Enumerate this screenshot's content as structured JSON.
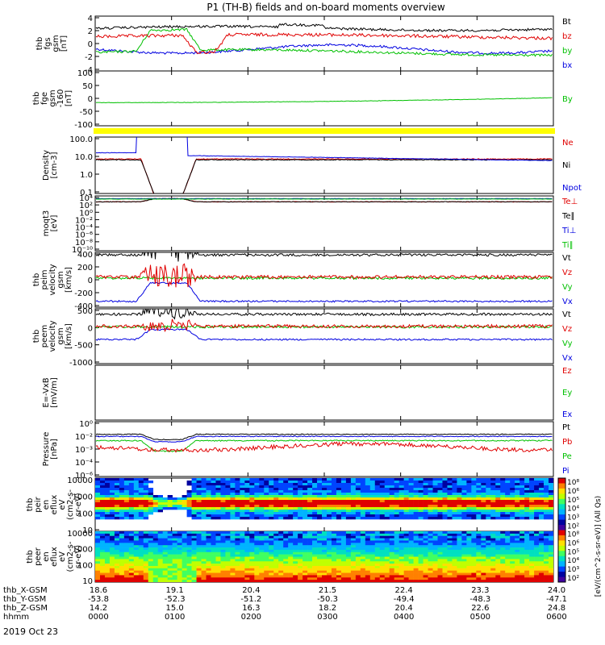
{
  "title": "P1 (TH-B) fields and on-board moments overview",
  "date_label": "2019 Oct 23",
  "colors": {
    "black": "#000000",
    "red": "#e00000",
    "green": "#00c000",
    "blue": "#0000e0",
    "yellow": "#ffff00"
  },
  "chart_data": [
    {
      "type": "line",
      "ylabel": [
        "thb",
        "fgs",
        "gsm",
        "[nT]"
      ],
      "yticks": [
        "4",
        "2",
        "0",
        "-2",
        "-4"
      ],
      "ylim": [
        -4,
        4
      ],
      "series": [
        {
          "name": "Bt",
          "color": "black",
          "level": 2.2,
          "noise": 0.3
        },
        {
          "name": "bz",
          "color": "red",
          "level": 1.0,
          "noise": 0.4
        },
        {
          "name": "by",
          "color": "green",
          "level": -1.2,
          "noise": 0.3
        },
        {
          "name": "bx",
          "color": "blue",
          "level": -0.8,
          "noise": 0.4
        }
      ]
    },
    {
      "type": "line",
      "ylabel": [
        "thb",
        "fge",
        "gsm",
        "-160",
        "[nT]"
      ],
      "yticks": [
        "100",
        "50",
        "0",
        "-50",
        "-100"
      ],
      "ylim": [
        -125,
        100
      ],
      "series": [
        {
          "name": "By",
          "color": "green",
          "level": -30,
          "noise": 0.5
        }
      ]
    },
    {
      "type": "bar",
      "note": "yellow flag bar",
      "color": "yellow"
    },
    {
      "type": "line",
      "log": true,
      "ylabel": [
        "Density",
        "[cm-3]"
      ],
      "yticks": [
        "100.0",
        "10.0",
        "1.0",
        "0.1"
      ],
      "series": [
        {
          "name": "Ne",
          "color": "red"
        },
        {
          "name": "Ni",
          "color": "black"
        },
        {
          "name": "Npot",
          "color": "blue"
        }
      ]
    },
    {
      "type": "line",
      "log": true,
      "ylabel": [
        "moqt3",
        "[eV]"
      ],
      "yticks": [
        "10⁴",
        "10²",
        "10⁰",
        "10⁻²",
        "10⁻⁴",
        "10⁻⁶",
        "10⁻⁸",
        "10⁻¹⁰"
      ],
      "series": [
        {
          "name": "Te⊥",
          "color": "red"
        },
        {
          "name": "Te∥",
          "color": "black"
        },
        {
          "name": "Ti⊥",
          "color": "blue"
        },
        {
          "name": "Ti∥",
          "color": "green"
        }
      ]
    },
    {
      "type": "line",
      "ylabel": [
        "thb",
        "peim",
        "velocity",
        "gsm",
        "[km/s]"
      ],
      "yticks": [
        "400",
        "200",
        "0",
        "-200",
        "-400"
      ],
      "series": [
        {
          "name": "Vt",
          "color": "black"
        },
        {
          "name": "Vz",
          "color": "red"
        },
        {
          "name": "Vy",
          "color": "green"
        },
        {
          "name": "Vx",
          "color": "blue"
        }
      ]
    },
    {
      "type": "line",
      "ylabel": [
        "thb",
        "peem",
        "velocity",
        "gsm",
        "[km/s]"
      ],
      "yticks": [
        "500",
        "0",
        "-500",
        "-1000"
      ],
      "series": [
        {
          "name": "Vt",
          "color": "black"
        },
        {
          "name": "Vz",
          "color": "red"
        },
        {
          "name": "Vy",
          "color": "green"
        },
        {
          "name": "Vx",
          "color": "blue"
        }
      ]
    },
    {
      "type": "line",
      "ylabel": [
        "E=-VxB",
        "[mV/m]"
      ],
      "yticks": [],
      "series": [
        {
          "name": "Ez",
          "color": "red"
        },
        {
          "name": "Ey",
          "color": "green"
        },
        {
          "name": "Ex",
          "color": "blue"
        }
      ]
    },
    {
      "type": "line",
      "log": true,
      "ylabel": [
        "Pressure",
        "[nPa]"
      ],
      "yticks": [
        "10⁰",
        "10⁻²",
        "10⁻³",
        "10⁻⁴",
        "10⁻⁶"
      ],
      "series": [
        {
          "name": "Pt",
          "color": "black"
        },
        {
          "name": "Pb",
          "color": "red"
        },
        {
          "name": "Pe",
          "color": "green"
        },
        {
          "name": "Pi",
          "color": "blue"
        }
      ]
    },
    {
      "type": "heatmap",
      "ylabel": [
        "thb",
        "peir",
        "en",
        "eflux",
        "eV",
        "(cm2-s-",
        "sr-eV)"
      ],
      "yticks": [
        "10000",
        "1000",
        "100",
        "10"
      ]
    },
    {
      "type": "heatmap",
      "ylabel": [
        "thb",
        "peer",
        "en",
        "eflux",
        "eV",
        "(cm2-s-",
        "sr-eV)"
      ],
      "yticks": [
        "10000",
        "1000",
        "100",
        "10"
      ]
    }
  ],
  "colorbar": {
    "label": "[eV/(cm^2-s-sr-eV)] (All Qs)",
    "ticks_top": [
      "10⁸",
      "10⁶",
      "10⁵",
      "10⁴",
      "10³",
      "10²"
    ],
    "ticks_bottom": [
      "10⁸",
      "10⁶",
      "10⁵",
      "10⁴",
      "10³",
      "10²"
    ]
  },
  "xaxis": {
    "row_labels": [
      "thb_X-GSM",
      "thb_Y-GSM",
      "thb_Z-GSM",
      "hhmm"
    ],
    "columns": [
      {
        "x": "18.6",
        "y": "-53.8",
        "z": "14.2",
        "t": "0000"
      },
      {
        "x": "19.1",
        "y": "-52.3",
        "z": "15.0",
        "t": "0100"
      },
      {
        "x": "20.4",
        "y": "-51.2",
        "z": "16.3",
        "t": "0200"
      },
      {
        "x": "21.5",
        "y": "-50.3",
        "z": "18.2",
        "t": "0300"
      },
      {
        "x": "22.4",
        "y": "-49.4",
        "z": "20.4",
        "t": "0400"
      },
      {
        "x": "23.3",
        "y": "-48.3",
        "z": "22.6",
        "t": "0500"
      },
      {
        "x": "24.0",
        "y": "-47.1",
        "z": "24.8",
        "t": "0600"
      }
    ]
  }
}
